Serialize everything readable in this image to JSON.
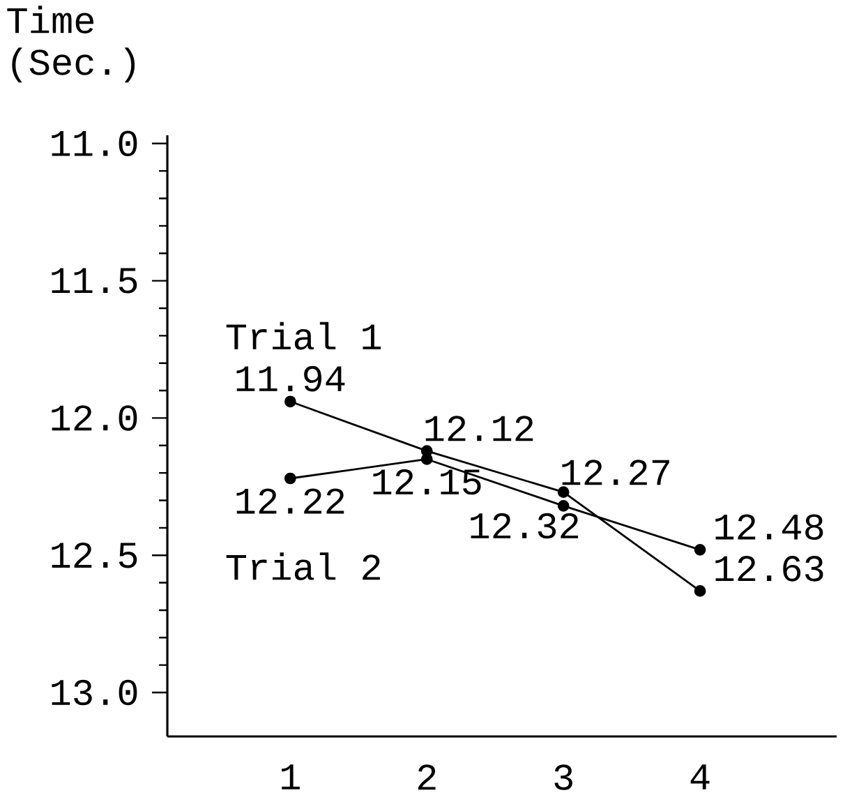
{
  "chart_data": {
    "type": "line",
    "ylabel": "Time (Sec.)",
    "x": [
      1,
      2,
      3,
      4
    ],
    "series": [
      {
        "name": "Trial 1",
        "color": "#000000",
        "values": [
          11.94,
          12.12,
          12.27,
          12.63
        ]
      },
      {
        "name": "Trial 2",
        "color": "#000000",
        "values": [
          12.22,
          12.15,
          12.32,
          12.48
        ]
      }
    ],
    "xlim": [
      0.1,
      5.0
    ],
    "xticks": [
      1,
      2,
      3,
      4
    ],
    "ylim": [
      13.16,
      10.97
    ],
    "yticks": [
      {
        "value": 11,
        "label": "11.0"
      },
      {
        "value": 11.1,
        "label": null
      },
      {
        "value": 11.2,
        "label": null
      },
      {
        "value": 11.3,
        "label": null
      },
      {
        "value": 11.4,
        "label": null
      },
      11.5,
      {
        "value": 11.6,
        "label": null
      },
      {
        "value": 11.7,
        "label": null
      },
      {
        "value": 11.8,
        "label": null
      },
      {
        "value": 11.9,
        "label": null
      },
      {
        "value": 12,
        "label": "12.0"
      },
      {
        "value": 12.1,
        "label": null
      },
      {
        "value": 12.2,
        "label": null
      },
      {
        "value": 12.3,
        "label": null
      },
      {
        "value": 12.4,
        "label": null
      },
      12.5,
      {
        "value": 12.6,
        "label": null
      },
      {
        "value": 12.7,
        "label": null
      },
      {
        "value": 12.8,
        "label": null
      },
      {
        "value": 12.9,
        "label": null
      },
      {
        "value": 13,
        "label": "13.0"
      }
    ],
    "data_labels": true,
    "marker": "circle",
    "line_style": "solid"
  }
}
